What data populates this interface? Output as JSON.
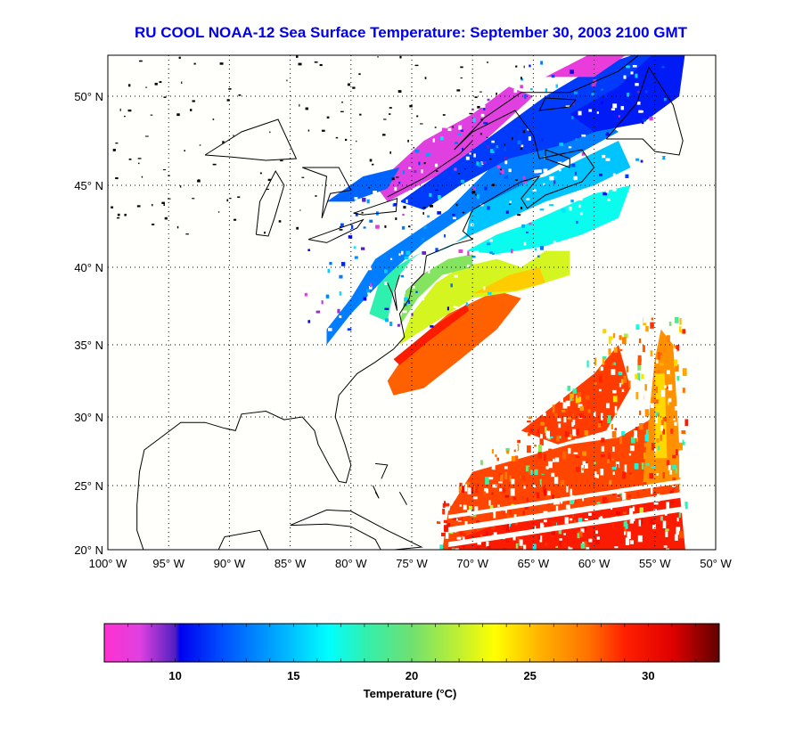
{
  "title": "RU COOL  NOAA-12  Sea Surface Temperature:  September 30, 2003 2100 GMT",
  "map": {
    "lon_ticks": [
      {
        "value": -100,
        "label": "100° W"
      },
      {
        "value": -95,
        "label": "95° W"
      },
      {
        "value": -90,
        "label": "90° W"
      },
      {
        "value": -85,
        "label": "85° W"
      },
      {
        "value": -80,
        "label": "80° W"
      },
      {
        "value": -75,
        "label": "75° W"
      },
      {
        "value": -70,
        "label": "70° W"
      },
      {
        "value": -65,
        "label": "65° W"
      },
      {
        "value": -60,
        "label": "60° W"
      },
      {
        "value": -55,
        "label": "55° W"
      },
      {
        "value": -50,
        "label": "50° W"
      }
    ],
    "lat_ticks": [
      {
        "value": 20,
        "label": "20° N"
      },
      {
        "value": 25,
        "label": "25° N"
      },
      {
        "value": 30,
        "label": "30° N"
      },
      {
        "value": 35,
        "label": "35° N"
      },
      {
        "value": 40,
        "label": "40° N"
      },
      {
        "value": 45,
        "label": "45° N"
      },
      {
        "value": 50,
        "label": "50° N"
      }
    ],
    "lon_range": [
      -100,
      -50
    ],
    "lat_range": [
      20,
      52.3
    ]
  },
  "colorbar": {
    "label": "Temperature (°C)",
    "range": [
      7,
      33
    ],
    "ticks": [
      {
        "value": 10,
        "label": "10"
      },
      {
        "value": 15,
        "label": "15"
      },
      {
        "value": 20,
        "label": "20"
      },
      {
        "value": 25,
        "label": "25"
      },
      {
        "value": 30,
        "label": "30"
      }
    ]
  }
}
